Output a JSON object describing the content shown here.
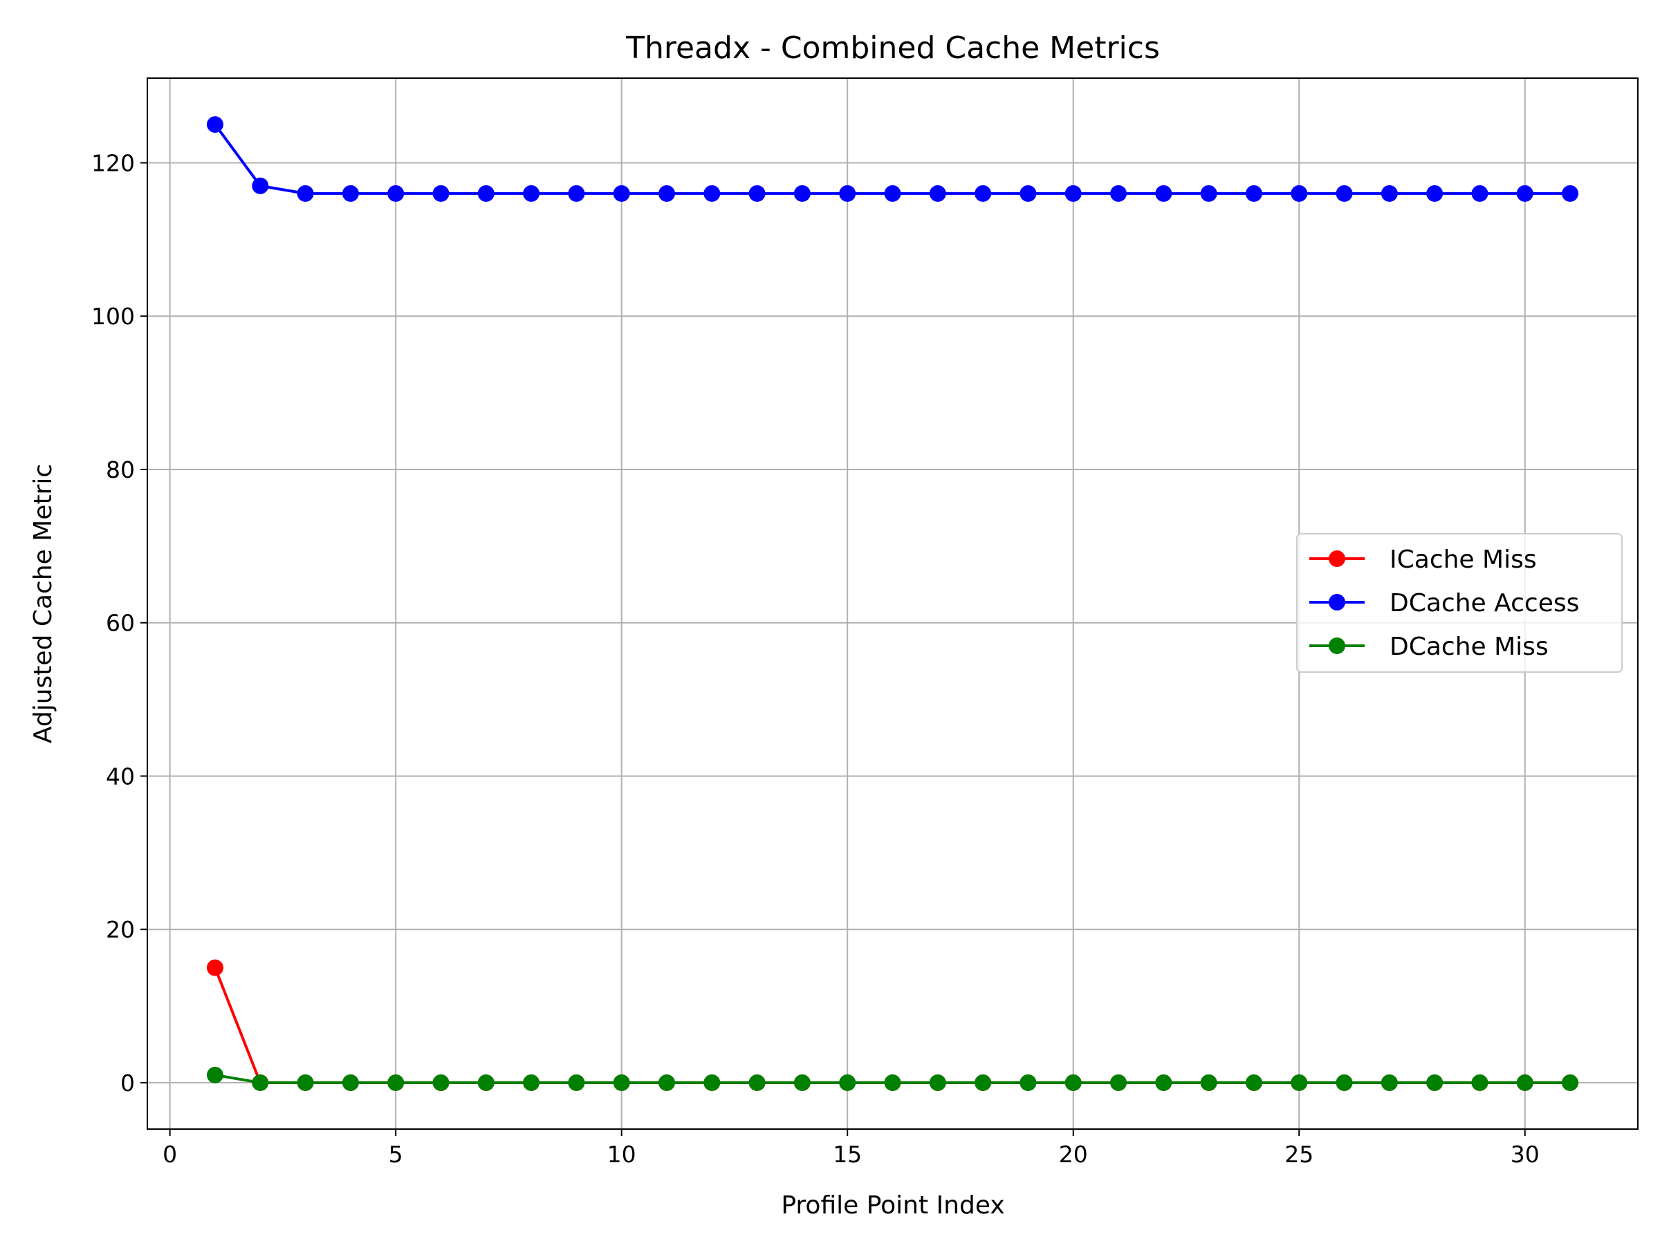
{
  "chart_data": {
    "type": "line",
    "title": "Threadx - Combined Cache Metrics",
    "xlabel": "Profile Point Index",
    "ylabel": "Adjusted Cache Metric",
    "xlim": [
      -0.5,
      32.5
    ],
    "ylim": [
      -6.05,
      131.05
    ],
    "xticks": [
      0,
      5,
      10,
      15,
      20,
      25,
      30
    ],
    "yticks": [
      0,
      20,
      40,
      60,
      80,
      100,
      120
    ],
    "grid": true,
    "legend_position": "center-right",
    "x": [
      1,
      2,
      3,
      4,
      5,
      6,
      7,
      8,
      9,
      10,
      11,
      12,
      13,
      14,
      15,
      16,
      17,
      18,
      19,
      20,
      21,
      22,
      23,
      24,
      25,
      26,
      27,
      28,
      29,
      30,
      31
    ],
    "series": [
      {
        "name": "ICache Miss",
        "color": "#ff0000",
        "values": [
          15,
          0,
          0,
          0,
          0,
          0,
          0,
          0,
          0,
          0,
          0,
          0,
          0,
          0,
          0,
          0,
          0,
          0,
          0,
          0,
          0,
          0,
          0,
          0,
          0,
          0,
          0,
          0,
          0,
          0,
          0
        ]
      },
      {
        "name": "DCache Access",
        "color": "#0000ff",
        "values": [
          125,
          117,
          116,
          116,
          116,
          116,
          116,
          116,
          116,
          116,
          116,
          116,
          116,
          116,
          116,
          116,
          116,
          116,
          116,
          116,
          116,
          116,
          116,
          116,
          116,
          116,
          116,
          116,
          116,
          116,
          116
        ]
      },
      {
        "name": "DCache Miss",
        "color": "#008000",
        "values": [
          1,
          0,
          0,
          0,
          0,
          0,
          0,
          0,
          0,
          0,
          0,
          0,
          0,
          0,
          0,
          0,
          0,
          0,
          0,
          0,
          0,
          0,
          0,
          0,
          0,
          0,
          0,
          0,
          0,
          0,
          0
        ]
      }
    ]
  }
}
